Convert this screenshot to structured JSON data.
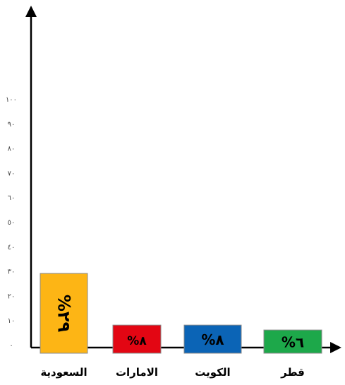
{
  "chart_data": {
    "type": "bar",
    "title": "",
    "xlabel": "",
    "ylabel": "",
    "ylim": [
      0,
      100
    ],
    "yticks": [
      {
        "value": 0,
        "label": "٠"
      },
      {
        "value": 10,
        "label": "١٠"
      },
      {
        "value": 20,
        "label": "٢٠"
      },
      {
        "value": 30,
        "label": "٣٠"
      },
      {
        "value": 40,
        "label": "٤٠"
      },
      {
        "value": 50,
        "label": "٥٠"
      },
      {
        "value": 60,
        "label": "٦٠"
      },
      {
        "value": 70,
        "label": "٧٠"
      },
      {
        "value": 80,
        "label": "٨٠"
      },
      {
        "value": 90,
        "label": "٩٠"
      },
      {
        "value": 100,
        "label": "١٠٠"
      }
    ],
    "categories": [
      "السعودية",
      "الامارات",
      "الكويت",
      "قطر"
    ],
    "values": [
      29,
      8,
      8,
      6
    ],
    "data_labels": [
      "%٢٩",
      "%٨",
      "%٨",
      "%٦"
    ],
    "colors": [
      "#FDB515",
      "#E30613",
      "#0B64B6",
      "#1DA84A"
    ],
    "grid": false
  }
}
